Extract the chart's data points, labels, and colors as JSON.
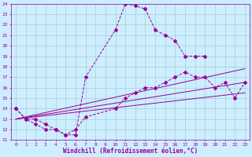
{
  "xlabel": "Windchill (Refroidissement éolien,°C)",
  "bg_color": "#cceeff",
  "line_color": "#990099",
  "grid_color": "#aacccc",
  "xlim": [
    -0.5,
    23.5
  ],
  "ylim": [
    11,
    24
  ],
  "xticks": [
    0,
    1,
    2,
    3,
    4,
    5,
    6,
    7,
    8,
    9,
    10,
    11,
    12,
    13,
    14,
    15,
    16,
    17,
    18,
    19,
    20,
    21,
    22,
    23
  ],
  "yticks": [
    11,
    12,
    13,
    14,
    15,
    16,
    17,
    18,
    19,
    20,
    21,
    22,
    23,
    24
  ],
  "curve1_x": [
    0,
    1,
    2,
    3,
    4,
    5,
    6,
    7,
    10,
    11,
    12,
    13,
    14,
    15,
    16,
    17,
    18,
    19
  ],
  "curve1_y": [
    14,
    13,
    13,
    12.5,
    12,
    11.5,
    11.5,
    17,
    21.5,
    24,
    23.8,
    23.5,
    21.5,
    21,
    20.5,
    19,
    19,
    19
  ],
  "curve2_x": [
    0,
    1,
    2,
    3,
    4,
    5,
    6,
    7,
    10,
    11,
    12,
    13,
    14,
    15,
    16,
    17,
    18,
    19,
    20,
    21,
    22,
    23
  ],
  "curve2_y": [
    14,
    13,
    12.5,
    12,
    12,
    11.5,
    12,
    13.2,
    14,
    15,
    15.5,
    16,
    16,
    16.5,
    17,
    17.5,
    17,
    17,
    16,
    16.5,
    15,
    16.5
  ],
  "line1_x": [
    0,
    23
  ],
  "line1_y": [
    13,
    17.8
  ],
  "line2_x": [
    0,
    23
  ],
  "line2_y": [
    13,
    16.5
  ],
  "line3_x": [
    0,
    23
  ],
  "line3_y": [
    13,
    15.5
  ]
}
